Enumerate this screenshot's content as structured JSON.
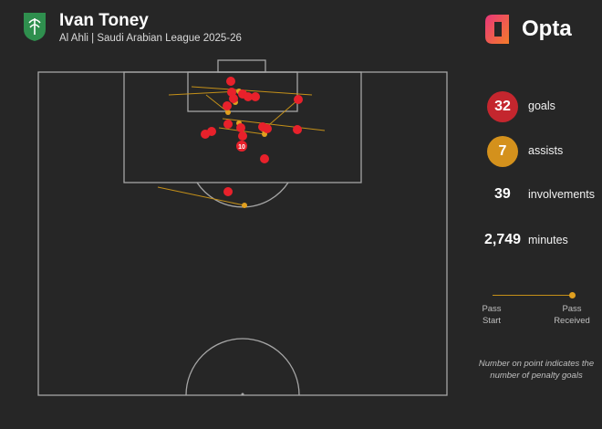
{
  "header": {
    "player_name": "Ivan Toney",
    "subtitle": "Al Ahli | Saudi Arabian League 2025-26"
  },
  "brand": {
    "name": "Opta"
  },
  "stats": {
    "goals": {
      "value": "32",
      "label": "goals",
      "color": "#c4262e"
    },
    "assists": {
      "value": "7",
      "label": "assists",
      "color": "#d4911c"
    },
    "involvements": {
      "value": "39",
      "label": "involvements"
    },
    "minutes": {
      "value": "2,749",
      "label": "minutes"
    }
  },
  "legend": {
    "start_label_1": "Pass",
    "start_label_2": "Start",
    "received_label_1": "Pass",
    "received_label_2": "Received"
  },
  "note": "Number on point indicates the number of penalty goals",
  "colors": {
    "background": "#262626",
    "pitch_lines": "#a6a6a6",
    "goal": "#e8212b",
    "assist": "#e09f1f",
    "crest": "#2f8f4e"
  },
  "penalty_goals_label": "10"
}
